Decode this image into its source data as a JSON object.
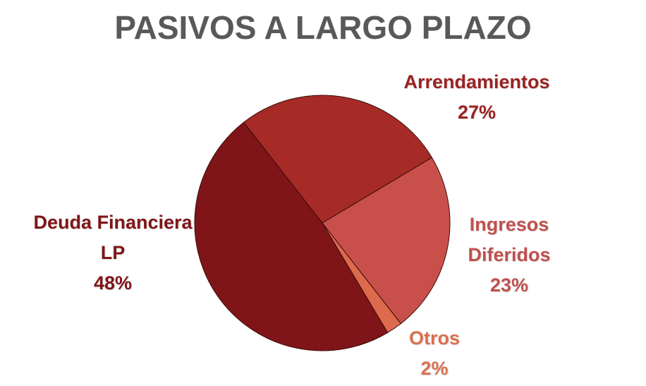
{
  "chart_data": {
    "type": "pie",
    "title": "PASIVOS A LARGO PLAZO",
    "categories": [
      "Arrendamientos",
      "Ingresos Diferidos",
      "Otros",
      "Deuda Financiera LP"
    ],
    "values": [
      27,
      23,
      2,
      48
    ],
    "value_labels": [
      "27%",
      "23%",
      "2%",
      "48%"
    ],
    "colors": [
      "#a62b26",
      "#c9504a",
      "#de6a4d",
      "#7f1518"
    ],
    "label_colors": [
      "#9b2222",
      "#c0504d",
      "#d9704f",
      "#7f1518"
    ]
  }
}
